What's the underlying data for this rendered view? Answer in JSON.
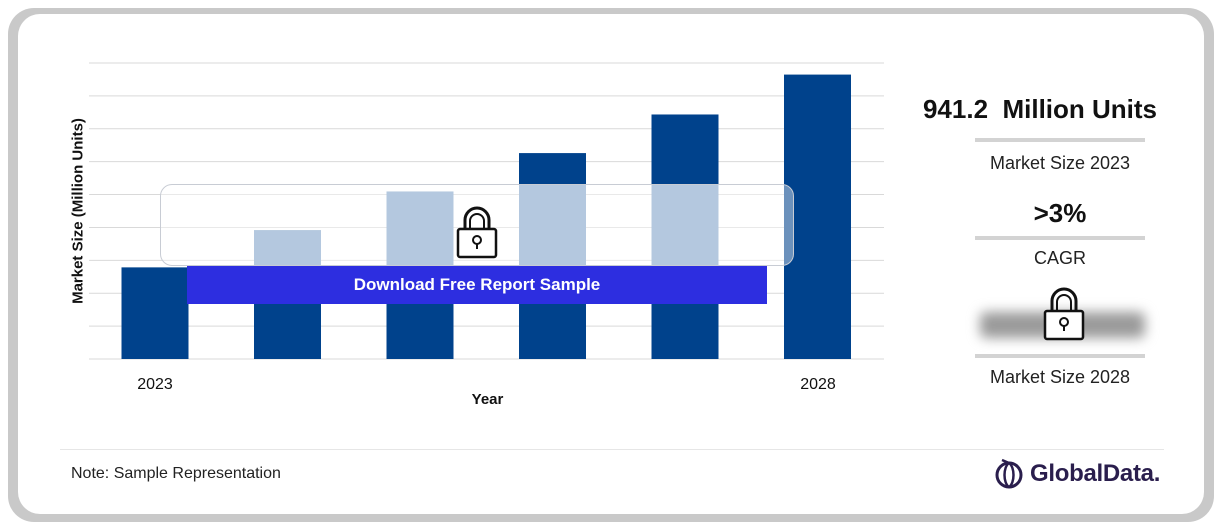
{
  "chart_data": {
    "type": "bar",
    "categories": [
      "2023",
      "",
      "",
      "",
      "",
      "2028"
    ],
    "values": [
      941.2,
      970,
      1000,
      1030,
      1060,
      1091
    ],
    "ylim": [
      870,
      1100
    ],
    "xlabel": "Year",
    "ylabel": "Market Size (Million Units)",
    "grid": true,
    "locked_bar_indices": [
      1,
      2,
      3,
      4
    ]
  },
  "colors": {
    "bar": "#00428c",
    "bar_locked": "#7fa1c9",
    "button": "#2d2ee0",
    "grid": "#d9d9d9"
  },
  "overlay": {
    "download_label": "Download Free Report Sample"
  },
  "kpis": {
    "market_size_value": "941.2  Million Units",
    "market_size_label": "Market Size 2023",
    "cagr_value": ">3%",
    "cagr_label": "CAGR",
    "future_label": "Market Size 2028"
  },
  "footer": {
    "note": "Note: Sample Representation",
    "brand": "GlobalData."
  },
  "icons": {
    "chart_lock": "lock-icon",
    "kpi_lock": "lock-icon",
    "brand_logo": "globaldata-logo-icon"
  }
}
